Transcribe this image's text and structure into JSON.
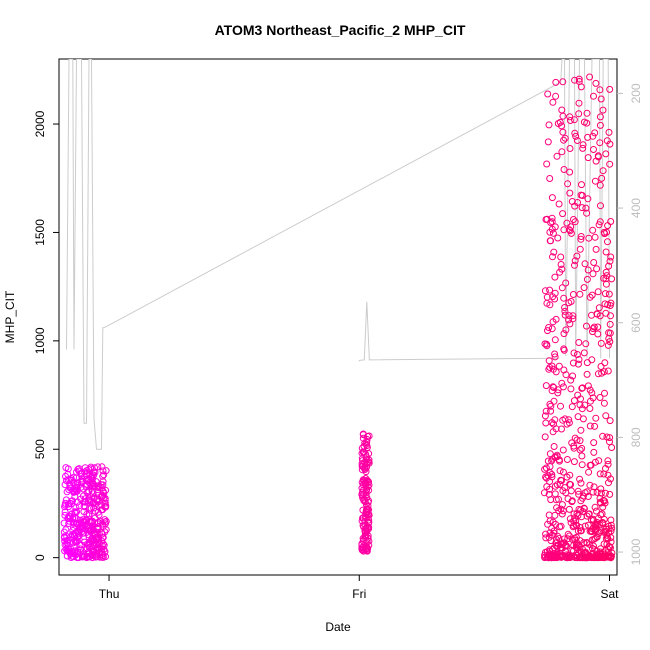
{
  "chart_data": {
    "type": "scatter",
    "title": "ATOM3 Northeast_Pacific_2 MHP_CIT",
    "xlabel": "Date",
    "ylabel": "MHP_CIT",
    "x_ticks": [
      "Thu",
      "Fri",
      "Sat"
    ],
    "x_tick_values": [
      0,
      1,
      2
    ],
    "x_range": [
      -0.2,
      2.03
    ],
    "y_ticks": [
      0,
      500,
      1000,
      1500,
      2000
    ],
    "y_range": [
      -80,
      2300
    ],
    "y2_ticks": [
      200,
      400,
      600,
      800,
      1000
    ],
    "y2_range": [
      1040,
      140
    ],
    "y2_reversed": true,
    "point_clusters": [
      {
        "name": "",
        "x_start": -0.18,
        "x_end": -0.01,
        "y_min": 0,
        "y_max": 420,
        "color_start": "#ff00ff",
        "color_end": "#ff00cc"
      },
      {
        "name": "",
        "x_start": 1.01,
        "x_end": 1.04,
        "y_min": 30,
        "y_max": 590,
        "color_start": "#ff00aa",
        "color_end": "#ff0099"
      },
      {
        "name": "",
        "x_start": 1.74,
        "x_end": 2.01,
        "y_min": 0,
        "y_max": 2220,
        "color_start": "#ff007f",
        "color_end": "#ff0066"
      }
    ],
    "line_series": {
      "name": "",
      "color": "#cccccc",
      "points": [
        [
          -0.17,
          960
        ],
        [
          -0.16,
          2300
        ],
        [
          -0.145,
          2300
        ],
        [
          -0.14,
          960
        ],
        [
          -0.13,
          2300
        ],
        [
          -0.11,
          2300
        ],
        [
          -0.1,
          620
        ],
        [
          -0.09,
          620
        ],
        [
          -0.08,
          2300
        ],
        [
          -0.07,
          2300
        ],
        [
          -0.06,
          640
        ],
        [
          -0.05,
          500
        ],
        [
          -0.03,
          500
        ],
        [
          -0.025,
          1060
        ],
        [
          -0.02,
          1060
        ],
        [
          1.8,
          2190
        ],
        [
          1.805,
          2190
        ],
        [
          1.81,
          2300
        ],
        [
          1.82,
          2300
        ],
        [
          1.825,
          930
        ],
        [
          1.84,
          2300
        ],
        [
          1.86,
          2300
        ],
        [
          1.865,
          920
        ],
        [
          1.88,
          2300
        ],
        [
          1.9,
          2300
        ],
        [
          1.91,
          920
        ],
        [
          1.93,
          2300
        ],
        [
          1.96,
          2300
        ],
        [
          1.965,
          920
        ],
        [
          1.975,
          2300
        ],
        [
          1.995,
          2300
        ],
        [
          2.0,
          920
        ]
      ],
      "fri_segment": [
        [
          1.0,
          905
        ],
        [
          1.0,
          910
        ],
        [
          1.02,
          912
        ],
        [
          1.03,
          1180
        ],
        [
          1.04,
          920
        ],
        [
          1.04,
          912
        ],
        [
          1.8,
          920
        ]
      ]
    },
    "grid": false,
    "legend": "none"
  }
}
